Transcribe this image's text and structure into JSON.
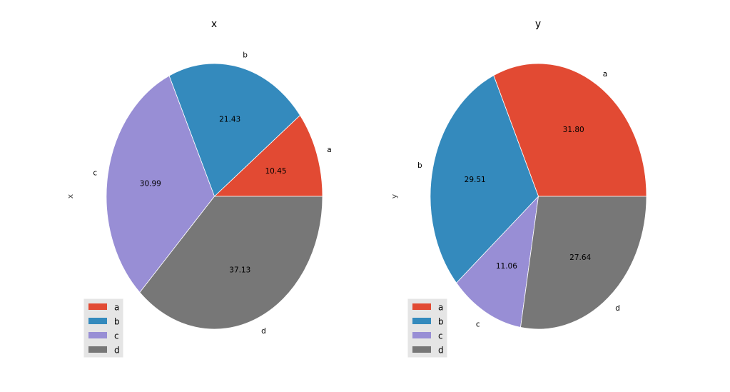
{
  "chart_data": [
    {
      "type": "pie",
      "title": "x",
      "ylabel": "x",
      "labels": [
        "a",
        "b",
        "c",
        "d"
      ],
      "values": [
        10.45,
        21.43,
        30.99,
        37.13
      ],
      "value_labels": [
        "10.45",
        "21.43",
        "30.99",
        "37.13"
      ],
      "colors": [
        "#E24A33",
        "#348ABD",
        "#988ED5",
        "#777777"
      ],
      "start_angle": 0,
      "direction": "counterclockwise",
      "legend": {
        "placement": "lower-left",
        "entries": [
          "a",
          "b",
          "c",
          "d"
        ]
      }
    },
    {
      "type": "pie",
      "title": "y",
      "ylabel": "y",
      "labels": [
        "a",
        "b",
        "c",
        "d"
      ],
      "values": [
        31.8,
        29.51,
        11.06,
        27.64
      ],
      "value_labels": [
        "31.80",
        "29.51",
        "11.06",
        "27.64"
      ],
      "colors": [
        "#E24A33",
        "#348ABD",
        "#988ED5",
        "#777777"
      ],
      "start_angle": 0,
      "direction": "counterclockwise",
      "legend": {
        "placement": "lower-left",
        "entries": [
          "a",
          "b",
          "c",
          "d"
        ]
      }
    }
  ]
}
